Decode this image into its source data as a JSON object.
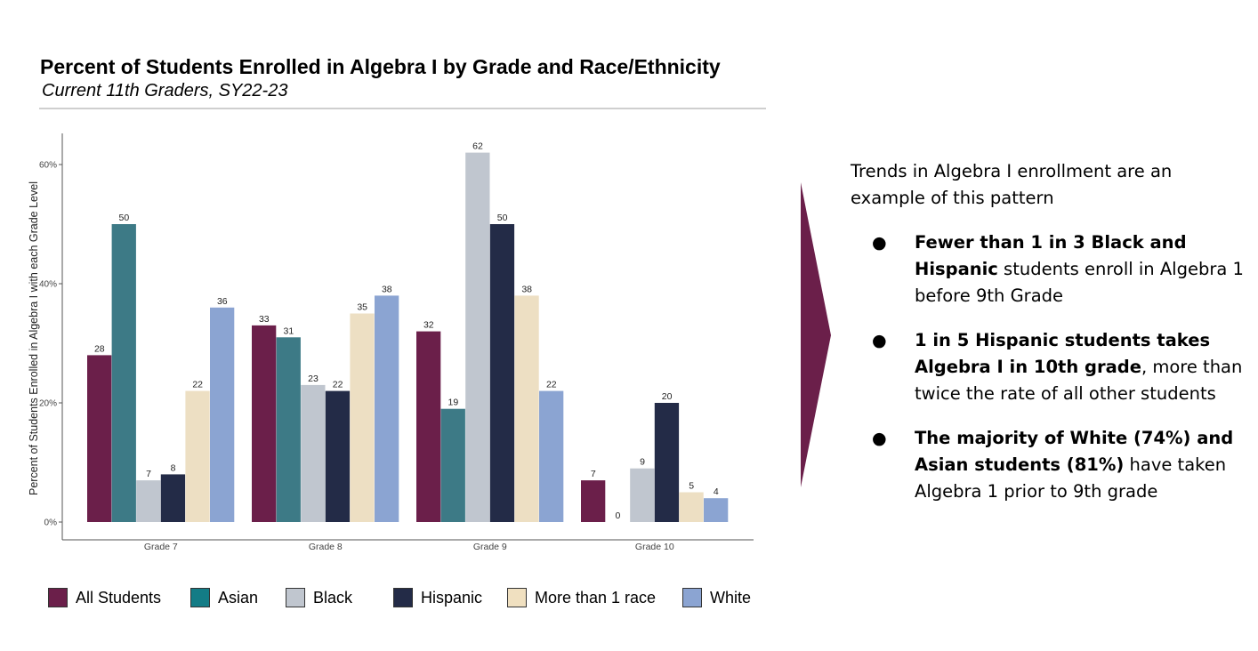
{
  "header": {
    "title": "Percent of Students Enrolled in Algebra I by Grade and Race/Ethnicity",
    "subtitle": "Current 11th Graders, SY22-23"
  },
  "chart_data": {
    "type": "bar",
    "ylabel": "Percent of Students Enrolled in Algebra I with each Grade Level",
    "xlabel": "",
    "ylim": [
      0,
      65
    ],
    "yticks": [
      0,
      20,
      40,
      60
    ],
    "ytick_labels": [
      "0%",
      "20%",
      "40%",
      "60%"
    ],
    "grid": false,
    "legend_position": "bottom",
    "categories": [
      "Grade 7",
      "Grade 8",
      "Grade 9",
      "Grade 10"
    ],
    "series": [
      {
        "name": "All Students",
        "color": "#6b1f4a",
        "values": [
          28,
          33,
          32,
          7
        ]
      },
      {
        "name": "Asian",
        "color": "#3d7a86",
        "values": [
          50,
          31,
          19,
          0
        ]
      },
      {
        "name": "Black",
        "color": "#c0c6cf",
        "values": [
          7,
          23,
          62,
          9
        ]
      },
      {
        "name": "Hispanic",
        "color": "#232b47",
        "values": [
          8,
          22,
          50,
          20
        ]
      },
      {
        "name": "More than 1 race",
        "color": "#eddfc3",
        "values": [
          22,
          35,
          38,
          5
        ]
      },
      {
        "name": "White",
        "color": "#8ba4d2",
        "values": [
          36,
          38,
          22,
          4
        ]
      }
    ]
  },
  "legend": {
    "items": [
      {
        "label": "All Students",
        "color": "#6b1f4a"
      },
      {
        "label": "Asian",
        "color": "#137c86"
      },
      {
        "label": "Black",
        "color": "#c0c6cf"
      },
      {
        "label": "Hispanic",
        "color": "#232b47"
      },
      {
        "label": "More than 1 race",
        "color": "#f0e0c0"
      },
      {
        "label": "White",
        "color": "#8ba4d2"
      }
    ]
  },
  "arrow_color": "#6b1f4a",
  "panel": {
    "intro": "Trends in Algebra I enrollment are an example of this pattern",
    "bullets": [
      {
        "bold": "Fewer than 1 in 3 Black and Hispanic",
        "rest": " students enroll in Algebra 1 before 9th Grade"
      },
      {
        "bold": "1 in 5 Hispanic students takes Algebra I in 10th grade",
        "rest": ", more than twice the rate of all other students"
      },
      {
        "bold": "The majority of White (74%) and Asian students (81%)",
        "rest": " have taken Algebra 1 prior to 9th grade"
      }
    ]
  }
}
